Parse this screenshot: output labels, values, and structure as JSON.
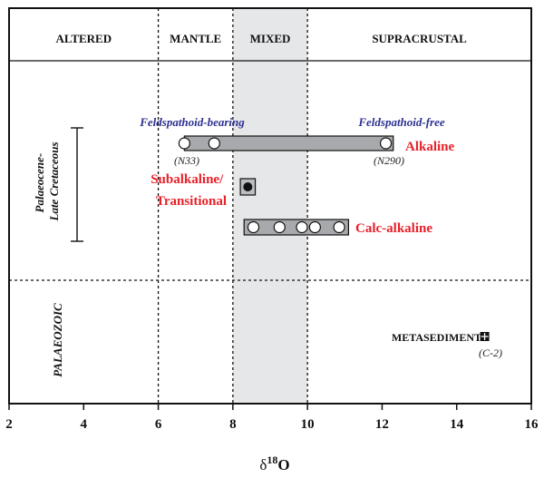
{
  "chart_data": {
    "type": "scatter",
    "xlabel": "δ",
    "xlabel_superscript": "18",
    "xlabel_suffix": "O",
    "xlim": [
      2,
      16
    ],
    "xticks": [
      2,
      4,
      6,
      8,
      10,
      12,
      14,
      16
    ],
    "xtick_labels": [
      "2",
      "4",
      "6",
      "8",
      "10",
      "12",
      "14",
      "16"
    ],
    "zones": [
      {
        "label": "ALTERED",
        "range": [
          2,
          6
        ]
      },
      {
        "label": "MANTLE",
        "range": [
          6,
          8
        ]
      },
      {
        "label": "MIXED",
        "range": [
          8,
          10
        ],
        "shaded": true
      },
      {
        "label": "SUPRACRUSTAL",
        "range": [
          10,
          16
        ]
      }
    ],
    "eras": {
      "upper": "Palaeocene-Late Cretaceous",
      "upper_line1": "Palaeocene-",
      "upper_line2": "Late Cretaceous",
      "lower": "PALAEOZOIC"
    },
    "series": [
      {
        "name": "Alkaline",
        "range": [
          6.7,
          12.3
        ],
        "points": [
          6.7,
          7.5,
          12.1
        ],
        "marker": "open-circle",
        "note_left": "(N33)",
        "note_right": "(N290)"
      },
      {
        "name": "Subalkaline/ Transitional",
        "name_line1": "Subalkaline/",
        "name_line2": "Transitional",
        "range": [
          8.2,
          8.6
        ],
        "points": [
          8.4
        ],
        "marker": "filled-circle"
      },
      {
        "name": "Calc-alkaline",
        "range": [
          8.3,
          11.1
        ],
        "points": [
          8.55,
          9.25,
          9.85,
          10.2,
          10.85
        ],
        "marker": "open-circle"
      }
    ],
    "annotations": {
      "feldspathoid_bearing": "Feldspathoid-bearing",
      "feldspathoid_free": "Feldspathoid-free",
      "metasediment": "METASEDIMENT",
      "metasediment_x": 14.75,
      "metasediment_note": "(C-2)"
    },
    "colors": {
      "group_label": "#e8212a",
      "feldspathoid_label": "#2e3192",
      "mixed_zone": "#e6e7e9",
      "bar_fill": "#a7a9ac"
    }
  }
}
